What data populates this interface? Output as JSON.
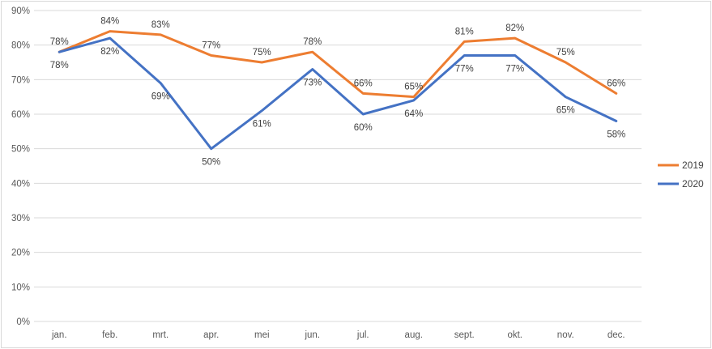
{
  "chart_data": {
    "type": "line",
    "title": "",
    "categories": [
      "jan.",
      "feb.",
      "mrt.",
      "apr.",
      "mei",
      "jun.",
      "jul.",
      "aug.",
      "sept.",
      "okt.",
      "nov.",
      "dec."
    ],
    "series": [
      {
        "name": "2019",
        "color": "#ED7D31",
        "values": [
          78,
          84,
          83,
          77,
          75,
          78,
          66,
          65,
          81,
          82,
          75,
          66
        ],
        "data_labels": [
          "78%",
          "84%",
          "83%",
          "77%",
          "75%",
          "78%",
          "66%",
          "65%",
          "81%",
          "82%",
          "75%",
          "66%"
        ],
        "label_position": "above"
      },
      {
        "name": "2020",
        "color": "#4472C4",
        "values": [
          78,
          82,
          69,
          50,
          61,
          73,
          60,
          64,
          77,
          77,
          65,
          58
        ],
        "data_labels": [
          "78%",
          "82%",
          "69%",
          "50%",
          "61%",
          "73%",
          "60%",
          "64%",
          "77%",
          "77%",
          "65%",
          "58%"
        ],
        "label_position": "below"
      }
    ],
    "y_axis": {
      "min": 0,
      "max": 90,
      "step": 10,
      "tick_labels": [
        "0%",
        "10%",
        "20%",
        "30%",
        "40%",
        "50%",
        "60%",
        "70%",
        "80%",
        "90%"
      ]
    },
    "legend": {
      "position": "right",
      "entries": [
        {
          "label": "2019",
          "color": "#ED7D31"
        },
        {
          "label": "2020",
          "color": "#4472C4"
        }
      ]
    },
    "grid": true,
    "styles": {
      "gridline_color": "#D9D9D9",
      "axis_line_color": "#D9D9D9",
      "axis_text_color": "#595959",
      "data_label_color": "#404040",
      "legend_text_color": "#404040",
      "border_color": "#D9D9D9",
      "background": "#FFFFFF",
      "line_width": 3
    }
  }
}
